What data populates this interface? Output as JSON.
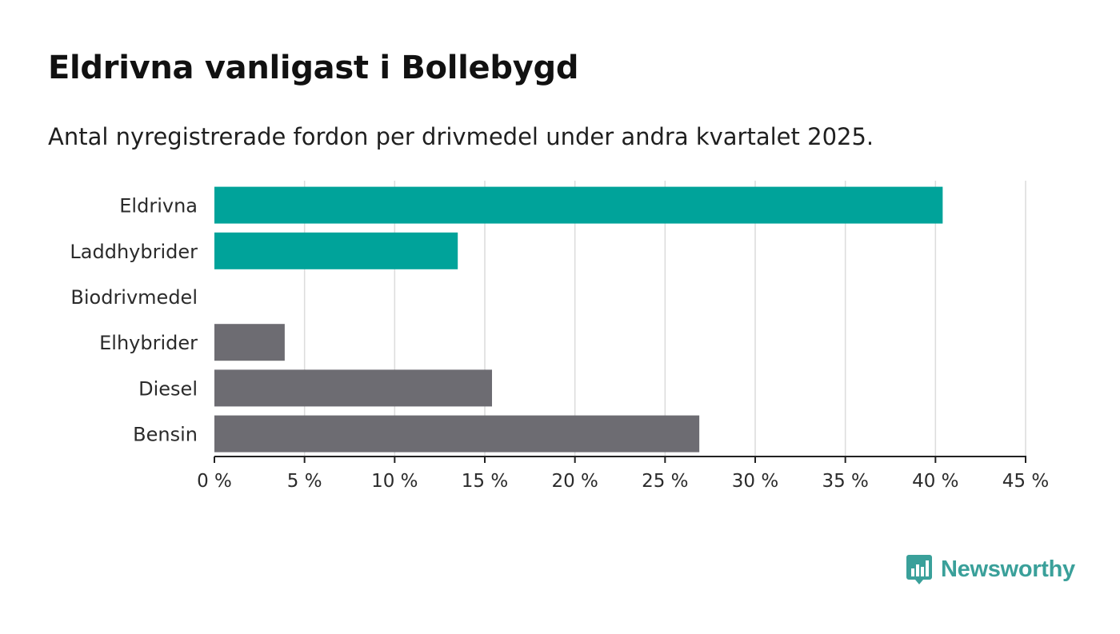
{
  "header": {
    "title": "Eldrivna vanligast i Bollebygd",
    "subtitle": "Antal nyregistrerade fordon per drivmedel under andra kvartalet 2025."
  },
  "brand": {
    "name": "Newsworthy",
    "icon": "newsworthy-logo-icon",
    "color": "#3aa09a"
  },
  "chart_data": {
    "type": "bar",
    "orientation": "horizontal",
    "categories": [
      "Eldrivna",
      "Laddhybrider",
      "Biodrivmedel",
      "Elhybrider",
      "Diesel",
      "Bensin"
    ],
    "values": [
      40.4,
      13.5,
      0,
      3.9,
      15.4,
      26.9
    ],
    "bar_colors": [
      "#00a39a",
      "#00a39a",
      "#00a39a",
      "#6d6c72",
      "#6d6c72",
      "#6d6c72"
    ],
    "xlim": [
      0,
      45
    ],
    "xticks": [
      0,
      5,
      10,
      15,
      20,
      25,
      30,
      35,
      40,
      45
    ],
    "tick_labels": [
      "0 %",
      "5 %",
      "10 %",
      "15 %",
      "20 %",
      "25 %",
      "30 %",
      "35 %",
      "40 %",
      "45 %"
    ],
    "grid": true,
    "legend": "none"
  }
}
